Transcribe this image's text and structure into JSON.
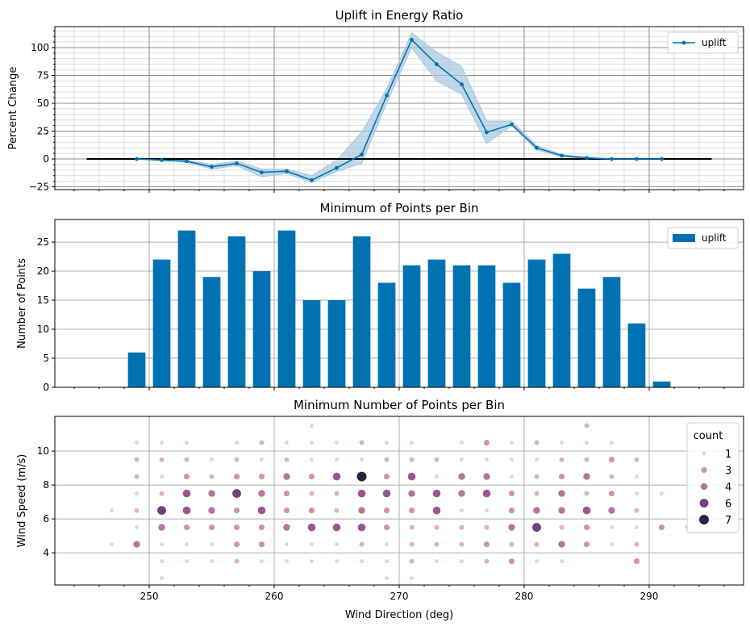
{
  "figure": {
    "xlabel": "Wind Direction (deg)"
  },
  "chart_data": [
    {
      "type": "line",
      "title": "Uplift in Energy Ratio",
      "ylabel": "Percent Change",
      "xlim": [
        242.45,
        297.55
      ],
      "ylim": [
        -27.5,
        118.8
      ],
      "yticks": [
        -25,
        0,
        25,
        50,
        75,
        100
      ],
      "grid": "major and minor",
      "legend": "top-right",
      "line_color": "#0072b2",
      "band_color": "#a6c8e0",
      "baseline": {
        "y": 0,
        "x": [
          245,
          295
        ],
        "color": "#000000"
      },
      "series": [
        {
          "name": "uplift",
          "x": [
            249,
            251,
            253,
            255,
            257,
            259,
            261,
            263,
            265,
            267,
            269,
            271,
            273,
            275,
            277,
            279,
            281,
            283,
            285,
            287,
            289,
            291
          ],
          "y": [
            0,
            -1,
            -2,
            -7,
            -4,
            -12,
            -11,
            -19,
            -8,
            4,
            57,
            107,
            85,
            67,
            24,
            31,
            10,
            3,
            1,
            0,
            0,
            0
          ],
          "lower": [
            0,
            -1,
            -3,
            -9,
            -6,
            -16,
            -13,
            -21,
            -11,
            -4,
            50,
            100,
            70,
            58,
            14,
            30,
            8,
            2,
            0.5,
            0,
            0,
            0
          ],
          "upper": [
            0,
            -0.5,
            -1,
            -5,
            -2,
            -9,
            -9,
            -15,
            -1,
            24,
            63,
            113,
            96,
            83,
            34,
            34,
            12,
            4,
            1.5,
            0,
            0,
            0
          ]
        }
      ]
    },
    {
      "type": "bar",
      "title": "Minimum of Points per Bin",
      "ylabel": "Number of Points",
      "xlim": [
        242.45,
        297.55
      ],
      "ylim": [
        0,
        28.9
      ],
      "yticks": [
        0,
        5,
        10,
        15,
        20,
        25
      ],
      "grid": "major",
      "legend": "top-right",
      "bar_color": "#0072b2",
      "series": [
        {
          "name": "uplift",
          "x": [
            249,
            251,
            253,
            255,
            257,
            259,
            261,
            263,
            265,
            267,
            269,
            271,
            273,
            275,
            277,
            279,
            281,
            283,
            285,
            287,
            289,
            291
          ],
          "values": [
            6,
            22,
            27,
            19,
            26,
            20,
            27,
            15,
            15,
            26,
            18,
            21,
            22,
            21,
            21,
            18,
            22,
            23,
            17,
            19,
            11,
            1
          ]
        }
      ]
    },
    {
      "type": "scatter",
      "title": "Minimum Number of Points per Bin",
      "ylabel": "Wind Speed (m/s)",
      "xlabel": "Wind Direction (deg)",
      "xlim": [
        242.45,
        297.55
      ],
      "ylim": [
        2.1,
        12.05
      ],
      "xticks": [
        250,
        260,
        270,
        280,
        290
      ],
      "yticks": [
        4,
        6,
        8,
        10
      ],
      "grid": "major",
      "legend": "top-right",
      "legend_title": "count",
      "legend_entries": [
        1,
        3,
        4,
        6,
        7
      ],
      "palette": {
        "1": "#efd0c6",
        "2": "#e2b2b4",
        "3": "#d193aa",
        "4": "#b8729e",
        "5": "#9a5693",
        "6": "#713f7c",
        "7": "#2e1e3f"
      },
      "points": [
        [
          263,
          11.5,
          1
        ],
        [
          285,
          11.5,
          2
        ],
        [
          249,
          10.5,
          1
        ],
        [
          251,
          10.5,
          1
        ],
        [
          253,
          10.5,
          1
        ],
        [
          257,
          10.5,
          1
        ],
        [
          259,
          10.5,
          2
        ],
        [
          261,
          10.5,
          1
        ],
        [
          263,
          10.5,
          1
        ],
        [
          265,
          10.5,
          1
        ],
        [
          267,
          10.5,
          2
        ],
        [
          269,
          10.5,
          1
        ],
        [
          271,
          10.5,
          1
        ],
        [
          275,
          10.5,
          1
        ],
        [
          277,
          10.5,
          3
        ],
        [
          279,
          10.5,
          1
        ],
        [
          281,
          10.5,
          2
        ],
        [
          283,
          10.5,
          1
        ],
        [
          285,
          10.5,
          1
        ],
        [
          287,
          10.5,
          1
        ],
        [
          249,
          9.5,
          2
        ],
        [
          251,
          9.5,
          2
        ],
        [
          253,
          9.5,
          2
        ],
        [
          255,
          9.5,
          1
        ],
        [
          257,
          9.5,
          2
        ],
        [
          259,
          9.5,
          1
        ],
        [
          261,
          9.5,
          2
        ],
        [
          263,
          9.5,
          1
        ],
        [
          265,
          9.5,
          1
        ],
        [
          267,
          9.5,
          1
        ],
        [
          269,
          9.5,
          2
        ],
        [
          271,
          9.5,
          2
        ],
        [
          273,
          9.5,
          2
        ],
        [
          275,
          9.5,
          1
        ],
        [
          277,
          9.5,
          1
        ],
        [
          279,
          9.5,
          1
        ],
        [
          281,
          9.5,
          1
        ],
        [
          283,
          9.5,
          2
        ],
        [
          285,
          9.5,
          2
        ],
        [
          287,
          9.5,
          3
        ],
        [
          289,
          9.5,
          2
        ],
        [
          249,
          8.5,
          2
        ],
        [
          251,
          8.5,
          1
        ],
        [
          253,
          8.5,
          3
        ],
        [
          255,
          8.5,
          2
        ],
        [
          257,
          8.5,
          3
        ],
        [
          259,
          8.5,
          3
        ],
        [
          261,
          8.5,
          4
        ],
        [
          263,
          8.5,
          3
        ],
        [
          265,
          8.5,
          5
        ],
        [
          267,
          8.5,
          7
        ],
        [
          269,
          8.5,
          3
        ],
        [
          271,
          8.5,
          5
        ],
        [
          273,
          8.5,
          1
        ],
        [
          275,
          8.5,
          4
        ],
        [
          277,
          8.5,
          4
        ],
        [
          279,
          8.5,
          1
        ],
        [
          281,
          8.5,
          2
        ],
        [
          283,
          8.5,
          3
        ],
        [
          285,
          8.5,
          4
        ],
        [
          287,
          8.5,
          2
        ],
        [
          289,
          8.5,
          1
        ],
        [
          249,
          7.5,
          1
        ],
        [
          251,
          7.5,
          2
        ],
        [
          253,
          7.5,
          5
        ],
        [
          255,
          7.5,
          4
        ],
        [
          257,
          7.5,
          6
        ],
        [
          259,
          7.5,
          4
        ],
        [
          261,
          7.5,
          3
        ],
        [
          263,
          7.5,
          2
        ],
        [
          265,
          7.5,
          2
        ],
        [
          267,
          7.5,
          5
        ],
        [
          269,
          7.5,
          5
        ],
        [
          271,
          7.5,
          4
        ],
        [
          273,
          7.5,
          5
        ],
        [
          275,
          7.5,
          4
        ],
        [
          277,
          7.5,
          5
        ],
        [
          279,
          7.5,
          3
        ],
        [
          281,
          7.5,
          2
        ],
        [
          283,
          7.5,
          4
        ],
        [
          285,
          7.5,
          2
        ],
        [
          287,
          7.5,
          3
        ],
        [
          289,
          7.5,
          1
        ],
        [
          291,
          7.5,
          1
        ],
        [
          247,
          6.5,
          1
        ],
        [
          249,
          6.5,
          2
        ],
        [
          251,
          6.5,
          6
        ],
        [
          253,
          6.5,
          5
        ],
        [
          255,
          6.5,
          4
        ],
        [
          257,
          6.5,
          3
        ],
        [
          259,
          6.5,
          5
        ],
        [
          261,
          6.5,
          3
        ],
        [
          263,
          6.5,
          3
        ],
        [
          265,
          6.5,
          2
        ],
        [
          267,
          6.5,
          4
        ],
        [
          269,
          6.5,
          3
        ],
        [
          271,
          6.5,
          3
        ],
        [
          273,
          6.5,
          5
        ],
        [
          275,
          6.5,
          1
        ],
        [
          277,
          6.5,
          1
        ],
        [
          279,
          6.5,
          3
        ],
        [
          281,
          6.5,
          4
        ],
        [
          283,
          6.5,
          4
        ],
        [
          285,
          6.5,
          5
        ],
        [
          287,
          6.5,
          4
        ],
        [
          289,
          6.5,
          2
        ],
        [
          249,
          5.5,
          1
        ],
        [
          251,
          5.5,
          4
        ],
        [
          253,
          5.5,
          3
        ],
        [
          255,
          5.5,
          3
        ],
        [
          257,
          5.5,
          3
        ],
        [
          259,
          5.5,
          3
        ],
        [
          261,
          5.5,
          4
        ],
        [
          263,
          5.5,
          5
        ],
        [
          265,
          5.5,
          5
        ],
        [
          267,
          5.5,
          5
        ],
        [
          269,
          5.5,
          3
        ],
        [
          271,
          5.5,
          2
        ],
        [
          273,
          5.5,
          2
        ],
        [
          275,
          5.5,
          2
        ],
        [
          277,
          5.5,
          2
        ],
        [
          279,
          5.5,
          4
        ],
        [
          281,
          5.5,
          6
        ],
        [
          283,
          5.5,
          2
        ],
        [
          285,
          5.5,
          3
        ],
        [
          287,
          5.5,
          1
        ],
        [
          289,
          5.5,
          1
        ],
        [
          291,
          5.5,
          3
        ],
        [
          293,
          5.5,
          1
        ],
        [
          247,
          4.5,
          1
        ],
        [
          249,
          4.5,
          4
        ],
        [
          251,
          4.5,
          1
        ],
        [
          253,
          4.5,
          1
        ],
        [
          255,
          4.5,
          1
        ],
        [
          257,
          4.5,
          3
        ],
        [
          259,
          4.5,
          3
        ],
        [
          261,
          4.5,
          1
        ],
        [
          263,
          4.5,
          1
        ],
        [
          265,
          4.5,
          1
        ],
        [
          267,
          4.5,
          2
        ],
        [
          269,
          4.5,
          1
        ],
        [
          271,
          4.5,
          2
        ],
        [
          273,
          4.5,
          2
        ],
        [
          275,
          4.5,
          2
        ],
        [
          277,
          4.5,
          3
        ],
        [
          279,
          4.5,
          2
        ],
        [
          281,
          4.5,
          2
        ],
        [
          283,
          4.5,
          4
        ],
        [
          285,
          4.5,
          3
        ],
        [
          287,
          4.5,
          1
        ],
        [
          289,
          4.5,
          2
        ],
        [
          251,
          3.5,
          1
        ],
        [
          253,
          3.5,
          1
        ],
        [
          255,
          3.5,
          1
        ],
        [
          257,
          3.5,
          2
        ],
        [
          259,
          3.5,
          1
        ],
        [
          261,
          3.5,
          1
        ],
        [
          263,
          3.5,
          1
        ],
        [
          265,
          3.5,
          1
        ],
        [
          267,
          3.5,
          1
        ],
        [
          269,
          3.5,
          1
        ],
        [
          271,
          3.5,
          2
        ],
        [
          273,
          3.5,
          1
        ],
        [
          275,
          3.5,
          1
        ],
        [
          277,
          3.5,
          2
        ],
        [
          279,
          3.5,
          3
        ],
        [
          281,
          3.5,
          1
        ],
        [
          283,
          3.5,
          1
        ],
        [
          289,
          3.5,
          3
        ],
        [
          251,
          2.5,
          1
        ],
        [
          269,
          2.5,
          1
        ],
        [
          271,
          2.5,
          1
        ]
      ]
    }
  ]
}
